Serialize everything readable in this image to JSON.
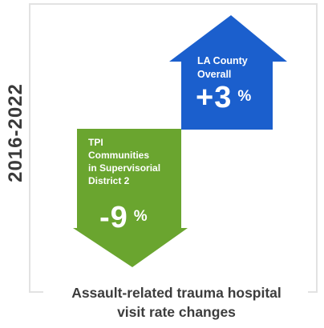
{
  "period": "2016-2022",
  "changes": [
    {
      "label_lines": [
        "LA County",
        "Overall"
      ],
      "direction": "up",
      "value": "+3",
      "unit": "%",
      "color": "#1b5fcd"
    },
    {
      "label_lines": [
        "TPI",
        "Communities",
        "in Supervisorial",
        "District 2"
      ],
      "direction": "down",
      "value": "-9",
      "unit": "%",
      "color": "#6aa52f"
    }
  ],
  "caption_lines": [
    "Assault-related trauma hospital",
    "visit rate changes"
  ]
}
